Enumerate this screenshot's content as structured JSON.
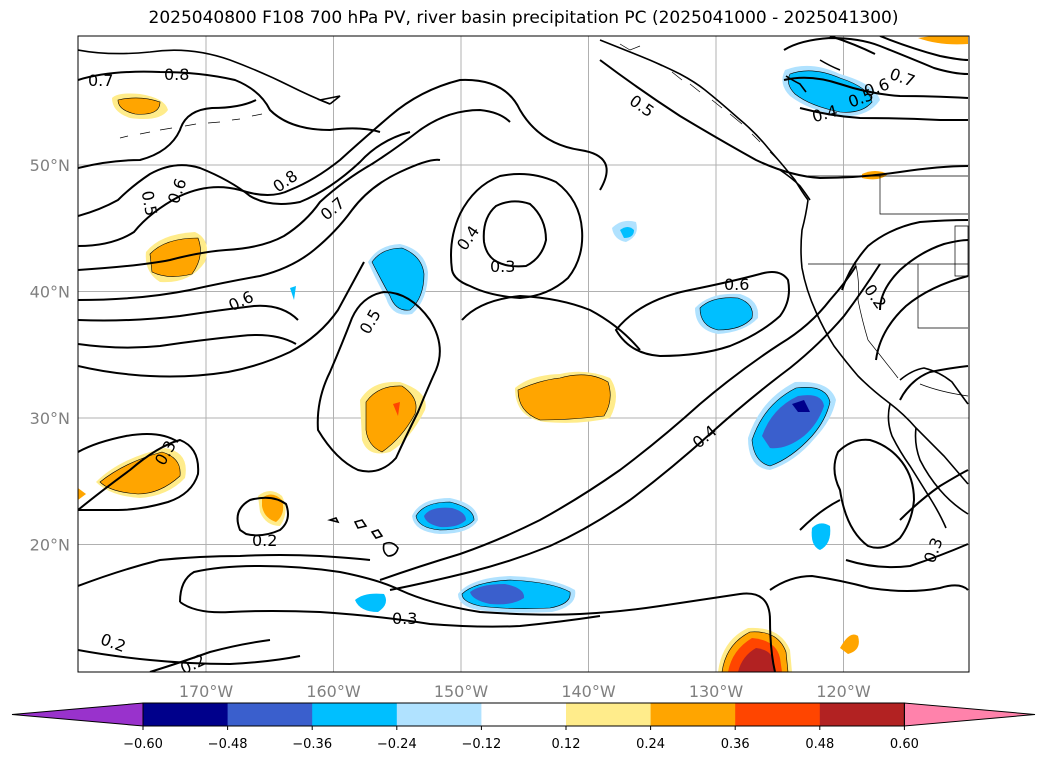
{
  "title": "2025040800 F108 700 hPa PV, river basin precipitation PC (2025041000 - 2025041300)",
  "lat_ticks": [
    {
      "label": "50°N",
      "value": 50
    },
    {
      "label": "40°N",
      "value": 40
    },
    {
      "label": "30°N",
      "value": 30
    },
    {
      "label": "20°N",
      "value": 20
    }
  ],
  "lon_ticks": [
    {
      "label": "170°W",
      "value": -170
    },
    {
      "label": "160°W",
      "value": -160
    },
    {
      "label": "150°W",
      "value": -150
    },
    {
      "label": "140°W",
      "value": -140
    },
    {
      "label": "130°W",
      "value": -130
    },
    {
      "label": "120°W",
      "value": -120
    }
  ],
  "colorbar": {
    "ticks": [
      "−0.60",
      "−0.48",
      "−0.36",
      "−0.24",
      "−0.12",
      "0.12",
      "0.24",
      "0.36",
      "0.48",
      "0.60"
    ],
    "colors": [
      "#9932cc",
      "#00008b",
      "#3a5fcd",
      "#00bfff",
      "#b0e2ff",
      "#ffffff",
      "#ffec8b",
      "#ffa500",
      "#ff4500",
      "#b22222",
      "#ff82ab"
    ]
  },
  "contour_labels": {
    "l1": "0.7",
    "l2": "0.8",
    "l3": "0.5",
    "l4": "0.6",
    "l5": "0.8",
    "l6": "0.7",
    "l7": "0.4",
    "l8": "0.3",
    "l9": "0.6",
    "l10": "0.5",
    "l11": "0.5",
    "l12": "0.6",
    "l13": "0.7",
    "l14": "0.5",
    "l15": "0.4",
    "l16": "0.6",
    "l17": "0.2",
    "l18": "0.4",
    "l19": "0.3",
    "l20": "0.2",
    "l21": "0.3",
    "l22": "0.2",
    "l23": "0.2",
    "l24": "0.3"
  }
}
